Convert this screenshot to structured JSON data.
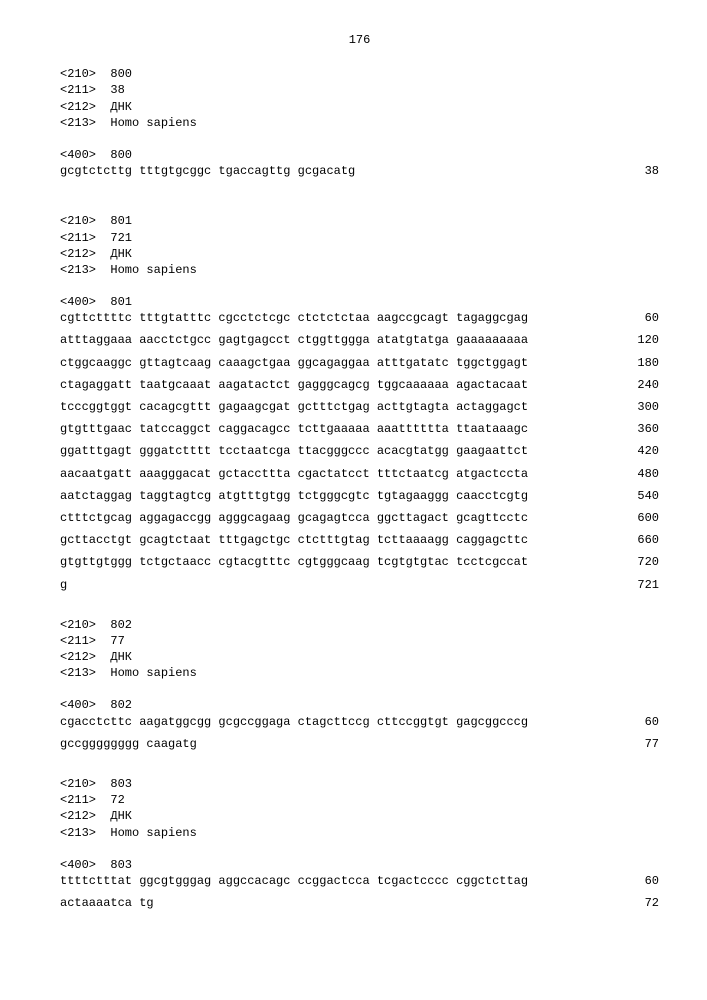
{
  "page_number": "176",
  "entries": [
    {
      "id": "800",
      "header": [
        "<210>  800",
        "<211>  38",
        "<212>  ДНК",
        "<213>  Homo sapiens"
      ],
      "feature": "<400>  800",
      "rows": [
        {
          "seq": "gcgtctcttg tttgtgcggc tgaccagttg gcgacatg",
          "num": "38"
        }
      ]
    },
    {
      "id": "801",
      "header": [
        "<210>  801",
        "<211>  721",
        "<212>  ДНК",
        "<213>  Homo sapiens"
      ],
      "feature": "<400>  801",
      "rows": [
        {
          "seq": "cgttcttttc tttgtatttc cgcctctcgc ctctctctaa aagccgcagt tagaggcgag",
          "num": "60"
        },
        {
          "seq": "atttaggaaa aacctctgcc gagtgagcct ctggttggga atatgtatga gaaaaaaaaa",
          "num": "120"
        },
        {
          "seq": "ctggcaaggc gttagtcaag caaagctgaa ggcagaggaa atttgatatc tggctggagt",
          "num": "180"
        },
        {
          "seq": "ctagaggatt taatgcaaat aagatactct gagggcagcg tggcaaaaaa agactacaat",
          "num": "240"
        },
        {
          "seq": "tcccggtggt cacagcgttt gagaagcgat gctttctgag acttgtagta actaggagct",
          "num": "300"
        },
        {
          "seq": "gtgtttgaac tatccaggct caggacagcc tcttgaaaaa aaatttttta ttaataaagc",
          "num": "360"
        },
        {
          "seq": "ggatttgagt gggatctttt tcctaatcga ttacgggccc acacgtatgg gaagaattct",
          "num": "420"
        },
        {
          "seq": "aacaatgatt aaagggacat gctaccttta cgactatcct tttctaatcg atgactccta",
          "num": "480"
        },
        {
          "seq": "aatctaggag taggtagtcg atgtttgtgg tctgggcgtc tgtagaaggg caacctcgtg",
          "num": "540"
        },
        {
          "seq": "ctttctgcag aggagaccgg agggcagaag gcagagtcca ggcttagact gcagttcctc",
          "num": "600"
        },
        {
          "seq": "gcttacctgt gcagtctaat tttgagctgc ctctttgtag tcttaaaagg caggagcttc",
          "num": "660"
        },
        {
          "seq": "gtgttgtggg tctgctaacc cgtacgtttc cgtgggcaag tcgtgtgtac tcctcgccat",
          "num": "720"
        },
        {
          "seq": "g",
          "num": "721"
        }
      ]
    },
    {
      "id": "802",
      "header": [
        "<210>  802",
        "<211>  77",
        "<212>  ДНК",
        "<213>  Homo sapiens"
      ],
      "feature": "<400>  802",
      "rows": [
        {
          "seq": "cgacctcttc aagatggcgg gcgccggaga ctagcttccg cttccggtgt gagcggcccg",
          "num": "60"
        },
        {
          "seq": "gccgggggggg caagatg",
          "num": "77"
        }
      ]
    },
    {
      "id": "803",
      "header": [
        "<210>  803",
        "<211>  72",
        "<212>  ДНК",
        "<213>  Homo sapiens"
      ],
      "feature": "<400>  803",
      "rows": [
        {
          "seq": "ttttctttat ggcgtgggag aggccacagc ccggactcca tcgactcccc cggctcttag",
          "num": "60"
        },
        {
          "seq": "actaaaatca tg",
          "num": "72"
        }
      ]
    }
  ]
}
